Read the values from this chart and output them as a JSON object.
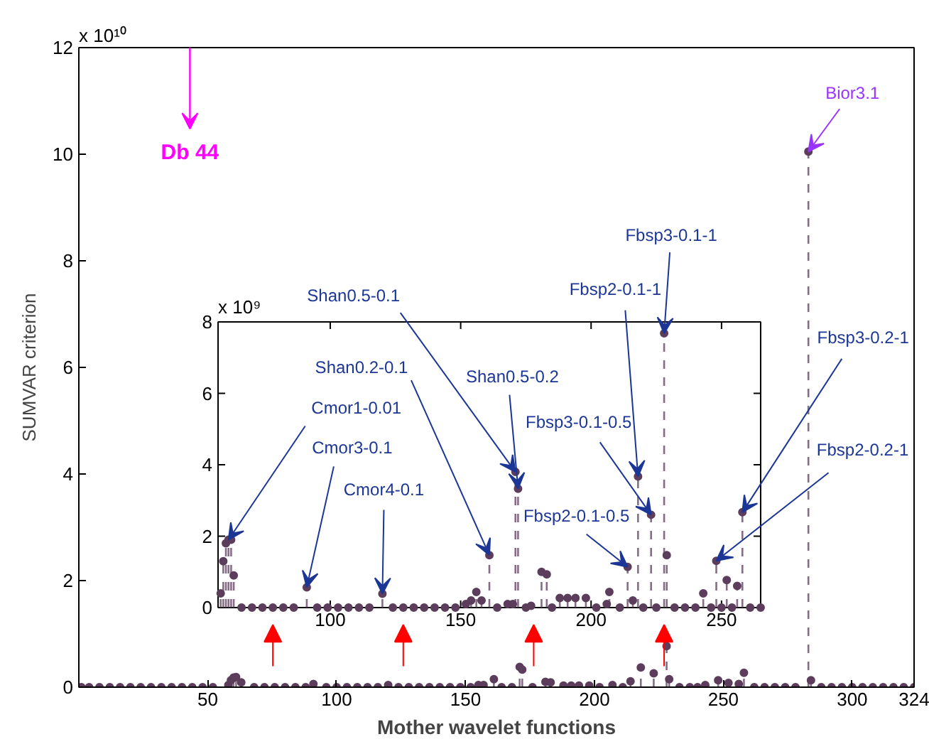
{
  "chart_data": [
    {
      "type": "lollipop",
      "xlabel": "Mother wavelet functions",
      "ylabel": "SUMVAR criterion",
      "annotations": [
        "x 10¹⁰",
        "Db 44",
        {
          "text": "Bior3.1",
          "x": 283,
          "y": 10.05
        }
      ],
      "xlim": [
        0,
        324
      ],
      "ylim": [
        0,
        12
      ],
      "xticks": [
        50,
        100,
        150,
        200,
        250,
        300,
        324
      ],
      "yticks": [
        0,
        2,
        4,
        6,
        8,
        10,
        12
      ],
      "marker": "circle",
      "line_style": "dashed",
      "color": "#5c3d5c",
      "x": [
        1,
        4,
        8,
        12,
        16,
        20,
        24,
        28,
        32,
        36,
        40,
        44,
        48,
        52,
        58,
        59,
        60,
        61,
        63,
        68,
        72,
        76,
        80,
        84,
        88,
        91,
        96,
        100,
        104,
        108,
        112,
        116,
        120,
        124,
        128,
        132,
        136,
        140,
        144,
        148,
        152,
        155,
        157,
        161,
        164,
        168,
        171,
        172,
        176,
        181,
        183,
        188,
        191,
        194,
        198,
        202,
        207,
        211,
        214,
        218,
        223,
        228,
        229,
        233,
        237,
        240,
        243,
        248,
        252,
        256,
        258,
        262,
        266,
        270,
        274,
        278,
        283,
        284,
        288,
        292,
        296,
        300,
        304,
        308,
        312,
        316,
        320,
        324
      ],
      "values": [
        0,
        0,
        0,
        0,
        0,
        0,
        0,
        0,
        0,
        0,
        0,
        0,
        0,
        0,
        0.04,
        0.13,
        0.18,
        0.19,
        0.09,
        0,
        0,
        0,
        0,
        0,
        0,
        0.06,
        0,
        0,
        0,
        0,
        0,
        0,
        0.04,
        0,
        0,
        0,
        0,
        0,
        0,
        0,
        0,
        0.04,
        0.04,
        0.15,
        0,
        0,
        0.38,
        0.33,
        0,
        0.1,
        0.09,
        0.03,
        0.03,
        0.03,
        0.03,
        0,
        0.04,
        0,
        0.11,
        0.37,
        0.26,
        0.77,
        0.15,
        0,
        0,
        0,
        0.04,
        0.13,
        0.08,
        0.06,
        0.27,
        0,
        0,
        0,
        0,
        0,
        10.05,
        0.13,
        0,
        0,
        0,
        0,
        0,
        0,
        0,
        0,
        0,
        0
      ]
    },
    {
      "type": "lollipop",
      "annotations": [
        "x 10⁹",
        {
          "text": "Cmor1-0.01",
          "x": 61,
          "y": 1.9
        },
        {
          "text": "Cmor3-0.1",
          "x": 91,
          "y": 0.57
        },
        {
          "text": "Cmor4-0.1",
          "x": 120,
          "y": 0.39
        },
        {
          "text": "Shan0.2-0.1",
          "x": 161,
          "y": 1.47
        },
        {
          "text": "Shan0.5-0.1",
          "x": 171,
          "y": 3.8
        },
        {
          "text": "Shan0.5-0.2",
          "x": 172,
          "y": 3.33
        },
        {
          "text": "Fbsp3-0.1-0.5",
          "x": 223,
          "y": 2.6
        },
        {
          "text": "Fbsp2-0.1-0.5",
          "x": 214,
          "y": 1.14
        },
        {
          "text": "Fbsp2-0.1-1",
          "x": 218,
          "y": 3.67
        },
        {
          "text": "Fbsp3-0.1-1",
          "x": 228,
          "y": 7.68
        },
        {
          "text": "Fbsp3-0.2-1",
          "x": 258,
          "y": 2.67
        },
        {
          "text": "Fbsp2-0.2-1",
          "x": 248,
          "y": 1.31
        }
      ],
      "xlim": [
        57,
        265
      ],
      "ylim": [
        0,
        8
      ],
      "xticks": [
        100,
        150,
        200,
        250
      ],
      "yticks": [
        0,
        2,
        4,
        6,
        8
      ],
      "marker": "circle",
      "line_style": "dashed",
      "color": "#5c3d5c",
      "x": [
        58,
        59,
        60,
        61,
        62,
        63,
        66,
        70,
        74,
        78,
        82,
        86,
        91,
        95,
        99,
        103,
        107,
        111,
        115,
        120,
        124,
        128,
        132,
        136,
        140,
        144,
        148,
        152,
        154,
        156,
        158,
        161,
        164,
        168,
        170,
        171,
        172,
        175,
        177,
        181,
        183,
        185,
        188,
        191,
        194,
        198,
        202,
        206,
        207,
        211,
        214,
        216,
        218,
        220,
        223,
        225,
        228,
        229,
        232,
        236,
        240,
        243,
        246,
        248,
        250,
        252,
        254,
        256,
        258,
        261,
        265
      ],
      "values": [
        0.4,
        1.3,
        1.8,
        1.9,
        1.9,
        0.9,
        0,
        0,
        0,
        0,
        0,
        0,
        0.57,
        0,
        0,
        0,
        0,
        0,
        0,
        0.39,
        0,
        0,
        0,
        0,
        0,
        0,
        0,
        0.1,
        0.2,
        0.44,
        0.2,
        1.47,
        0,
        0.1,
        0.1,
        3.8,
        3.33,
        0,
        0.05,
        1.0,
        0.93,
        0,
        0.27,
        0.27,
        0.27,
        0.27,
        0,
        0.1,
        0.44,
        0,
        1.14,
        0.2,
        3.67,
        0,
        2.6,
        0,
        7.68,
        1.47,
        0,
        0,
        0,
        0.4,
        0,
        1.31,
        0,
        0.77,
        0,
        0.61,
        2.67,
        0,
        0
      ]
    }
  ]
}
